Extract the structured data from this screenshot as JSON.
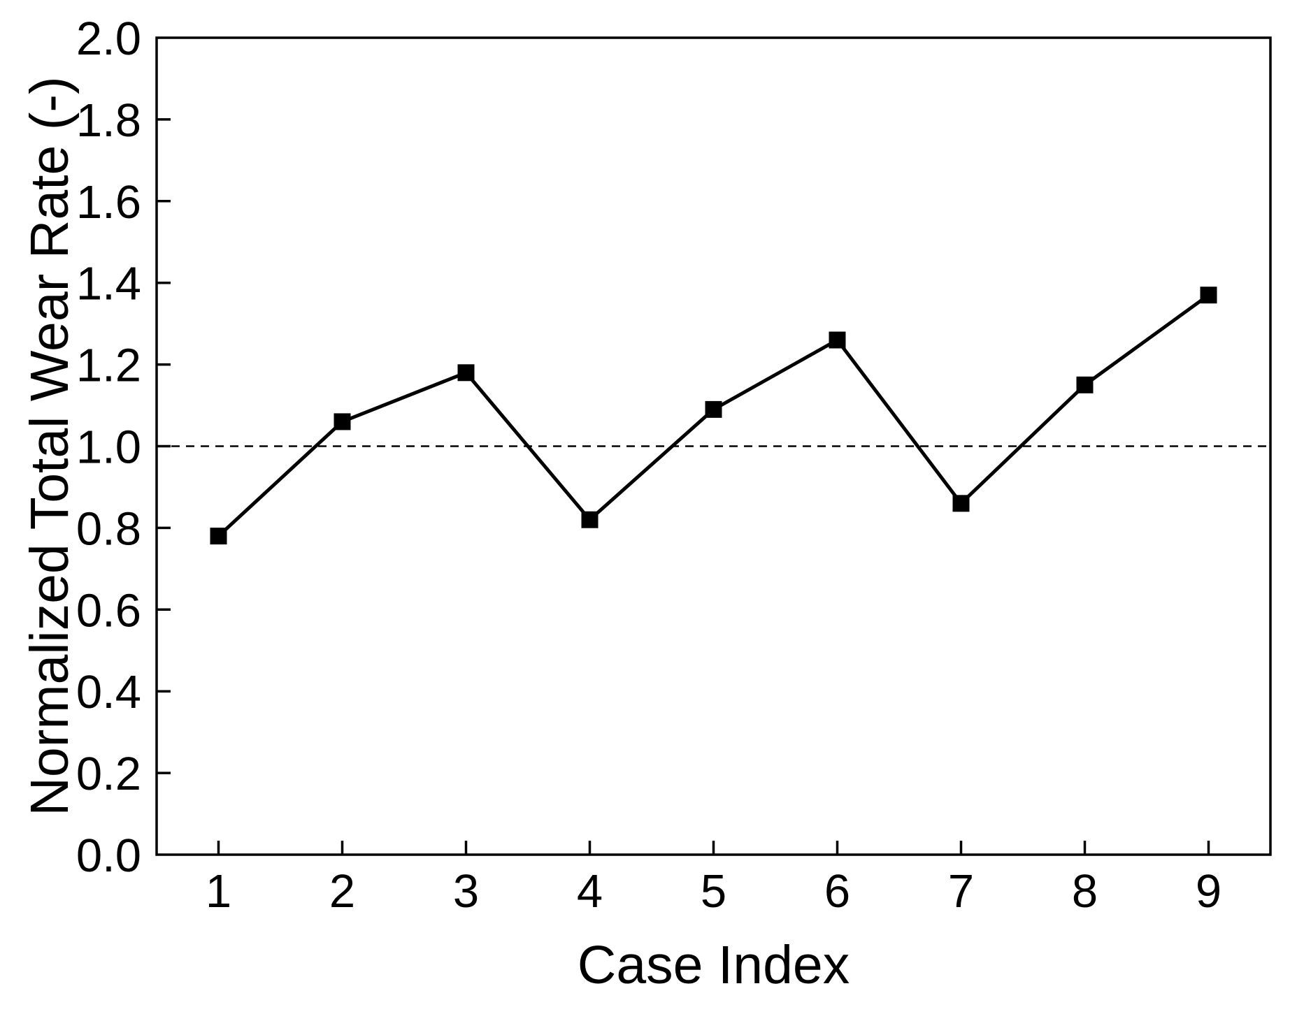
{
  "figure": {
    "background_color": "#ffffff",
    "foreground_color": "#000000"
  },
  "chart_data": {
    "type": "line",
    "title": "",
    "xlabel": "Case Index",
    "ylabel": "Normalized Total Wear Rate (-)",
    "x": [
      1,
      2,
      3,
      4,
      5,
      6,
      7,
      8,
      9
    ],
    "series": [
      {
        "name": "normalized-total-wear-rate",
        "values": [
          0.78,
          1.06,
          1.18,
          0.82,
          1.09,
          1.26,
          0.86,
          1.15,
          1.37
        ]
      }
    ],
    "xlim": [
      0.5,
      9.5
    ],
    "ylim": [
      0.0,
      2.0
    ],
    "x_tick_labels": [
      "1",
      "2",
      "3",
      "4",
      "5",
      "6",
      "7",
      "8",
      "9"
    ],
    "x_tick_values": [
      1,
      2,
      3,
      4,
      5,
      6,
      7,
      8,
      9
    ],
    "y_tick_labels": [
      "0.0",
      "0.2",
      "0.4",
      "0.6",
      "0.8",
      "1.0",
      "1.2",
      "1.4",
      "1.6",
      "1.8",
      "2.0"
    ],
    "y_tick_values": [
      0.0,
      0.2,
      0.4,
      0.6,
      0.8,
      1.0,
      1.2,
      1.4,
      1.6,
      1.8,
      2.0
    ],
    "reference_line": {
      "y": 1.0,
      "style": "dashed",
      "color": "#000000"
    },
    "marker": "filled-square",
    "line_color": "#000000",
    "marker_color": "#000000",
    "grid": false,
    "legend": false
  }
}
